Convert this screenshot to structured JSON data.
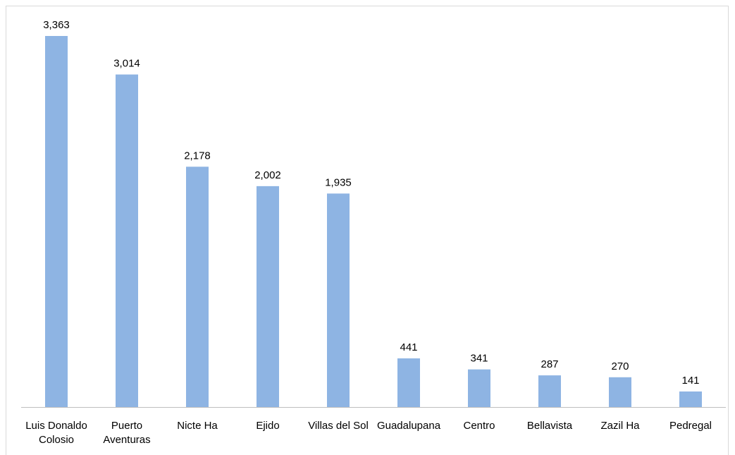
{
  "chart_data": {
    "type": "bar",
    "categories": [
      "Luis Donaldo Colosio",
      "Puerto Aventuras",
      "Nicte Ha",
      "Ejido",
      "Villas del Sol",
      "Guadalupana",
      "Centro",
      "Bellavista",
      "Zazil Ha",
      "Pedregal"
    ],
    "category_lines": [
      [
        "Luis Donaldo",
        "Colosio"
      ],
      [
        "Puerto",
        "Aventuras"
      ],
      [
        "Nicte Ha"
      ],
      [
        "Ejido"
      ],
      [
        "Villas del Sol"
      ],
      [
        "Guadalupana"
      ],
      [
        "Centro"
      ],
      [
        "Bellavista"
      ],
      [
        "Zazil Ha"
      ],
      [
        "Pedregal"
      ]
    ],
    "values": [
      3363,
      3014,
      2178,
      2002,
      1935,
      441,
      341,
      287,
      270,
      141
    ],
    "data_labels": [
      "3,363",
      "3,014",
      "2,178",
      "2,002",
      "1,935",
      "441",
      "341",
      "287",
      "270",
      "141"
    ],
    "title": "",
    "xlabel": "",
    "ylabel": "",
    "ylim": [
      0,
      3600
    ],
    "grid": false,
    "legend": "none",
    "bar_color": "#8eb4e3",
    "axis_color": "#bfbfbf"
  }
}
